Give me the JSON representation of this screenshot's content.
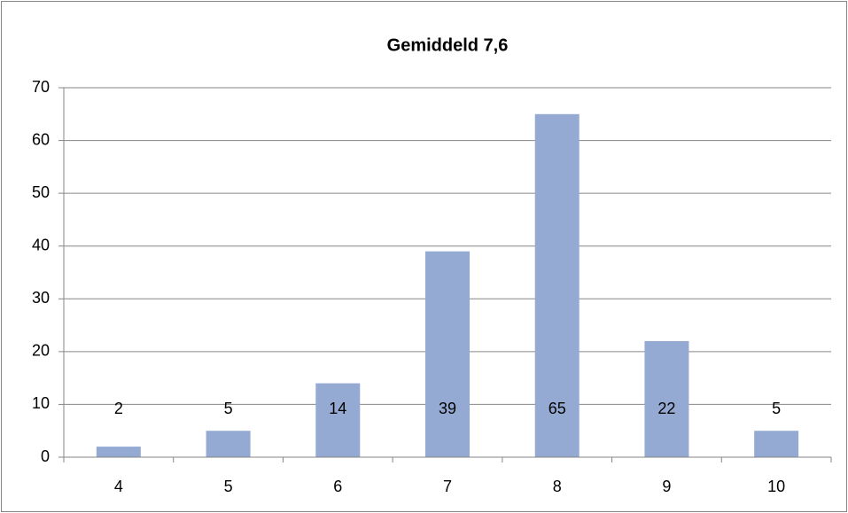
{
  "chart_data": {
    "type": "bar",
    "title": "Gemiddeld 7,6",
    "categories": [
      "4",
      "5",
      "6",
      "7",
      "8",
      "9",
      "10"
    ],
    "values": [
      2,
      5,
      14,
      39,
      65,
      22,
      5
    ],
    "color": "#95aad3",
    "ylim": [
      0,
      70
    ],
    "yticks": [
      0,
      10,
      20,
      30,
      40,
      50,
      60,
      70
    ],
    "grid": true
  }
}
